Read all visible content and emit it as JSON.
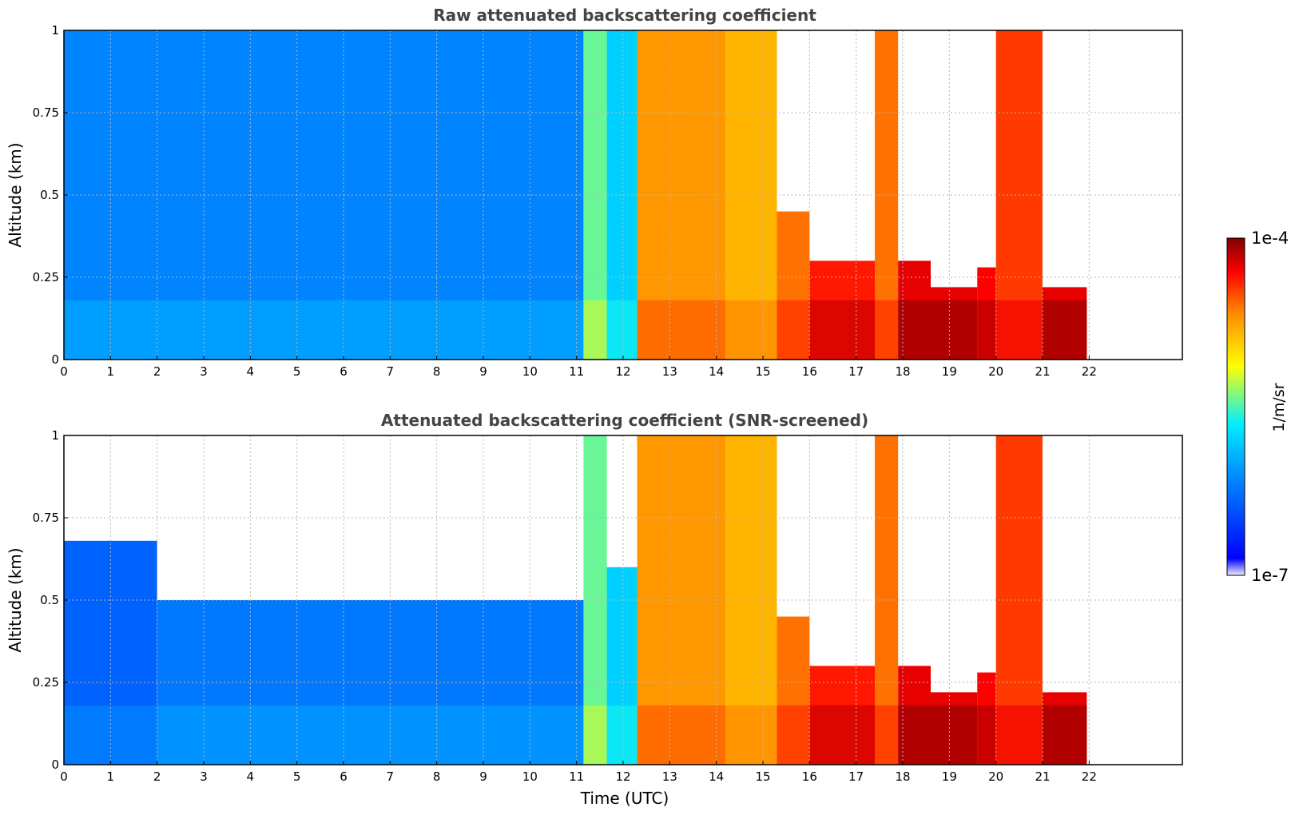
{
  "chart_data": [
    {
      "type": "heatmap",
      "title": "Raw attenuated backscattering coefficient",
      "xlabel": "",
      "ylabel": "Altitude (km)",
      "xlim": [
        0,
        24
      ],
      "ylim": [
        0,
        1
      ],
      "xticks": [
        "0",
        "1",
        "2",
        "3",
        "4",
        "5",
        "6",
        "7",
        "8",
        "9",
        "10",
        "11",
        "12",
        "13",
        "14",
        "15",
        "16",
        "17",
        "18",
        "19",
        "20",
        "21",
        "22"
      ],
      "yticks": [
        "0",
        "0.25",
        "0.5",
        "0.75",
        "1"
      ],
      "ytick_values": [
        0,
        0.25,
        0.5,
        0.75,
        1
      ],
      "grid": true,
      "bands": [
        {
          "x0": 0,
          "x1": 11.15,
          "y_top": 1.0,
          "level": 0.28
        },
        {
          "x0": 11.15,
          "x1": 11.65,
          "y_top": 1.0,
          "level": 0.52
        },
        {
          "x0": 11.65,
          "x1": 12.3,
          "y_top": 1.0,
          "level": 0.4
        },
        {
          "x0": 12.3,
          "x1": 14.2,
          "y_top": 1.0,
          "level": 0.76
        },
        {
          "x0": 14.2,
          "x1": 15.3,
          "y_top": 1.0,
          "level": 0.72
        },
        {
          "x0": 15.3,
          "x1": 16.0,
          "y_top": 0.45,
          "level": 0.8
        },
        {
          "x0": 16.0,
          "x1": 17.4,
          "y_top": 0.3,
          "level": 0.88
        },
        {
          "x0": 17.4,
          "x1": 17.9,
          "y_top": 1.0,
          "level": 0.8
        },
        {
          "x0": 17.9,
          "x1": 18.6,
          "y_top": 0.3,
          "level": 0.92
        },
        {
          "x0": 18.6,
          "x1": 19.6,
          "y_top": 0.22,
          "level": 0.92
        },
        {
          "x0": 19.6,
          "x1": 20.0,
          "y_top": 0.28,
          "level": 0.9
        },
        {
          "x0": 20.0,
          "x1": 21.0,
          "y_top": 1.0,
          "level": 0.85
        },
        {
          "x0": 21.0,
          "x1": 21.95,
          "y_top": 0.22,
          "level": 0.92
        }
      ]
    },
    {
      "type": "heatmap",
      "title": "Attenuated backscattering coefficient (SNR-screened)",
      "xlabel": "Time (UTC)",
      "ylabel": "Altitude (km)",
      "xlim": [
        0,
        24
      ],
      "ylim": [
        0,
        1
      ],
      "xticks": [
        "0",
        "1",
        "2",
        "3",
        "4",
        "5",
        "6",
        "7",
        "8",
        "9",
        "10",
        "11",
        "12",
        "13",
        "14",
        "15",
        "16",
        "17",
        "18",
        "19",
        "20",
        "21",
        "22"
      ],
      "yticks": [
        "0",
        "0.25",
        "0.5",
        "0.75",
        "1"
      ],
      "ytick_values": [
        0,
        0.25,
        0.5,
        0.75,
        1
      ],
      "grid": true,
      "bands": [
        {
          "x0": 0,
          "x1": 2.0,
          "y_top": 0.68,
          "level": 0.22
        },
        {
          "x0": 2.0,
          "x1": 11.15,
          "y_top": 0.5,
          "level": 0.26
        },
        {
          "x0": 11.15,
          "x1": 11.65,
          "y_top": 1.0,
          "level": 0.52
        },
        {
          "x0": 11.65,
          "x1": 12.3,
          "y_top": 0.6,
          "level": 0.4
        },
        {
          "x0": 12.3,
          "x1": 14.2,
          "y_top": 1.0,
          "level": 0.76
        },
        {
          "x0": 14.2,
          "x1": 15.3,
          "y_top": 1.0,
          "level": 0.72
        },
        {
          "x0": 15.3,
          "x1": 16.0,
          "y_top": 0.45,
          "level": 0.8
        },
        {
          "x0": 16.0,
          "x1": 17.4,
          "y_top": 0.3,
          "level": 0.88
        },
        {
          "x0": 17.4,
          "x1": 17.9,
          "y_top": 1.0,
          "level": 0.8
        },
        {
          "x0": 17.9,
          "x1": 18.6,
          "y_top": 0.3,
          "level": 0.92
        },
        {
          "x0": 18.6,
          "x1": 19.6,
          "y_top": 0.22,
          "level": 0.92
        },
        {
          "x0": 19.6,
          "x1": 20.0,
          "y_top": 0.28,
          "level": 0.9
        },
        {
          "x0": 20.0,
          "x1": 21.0,
          "y_top": 1.0,
          "level": 0.85
        },
        {
          "x0": 21.0,
          "x1": 21.95,
          "y_top": 0.22,
          "level": 0.92
        }
      ]
    }
  ],
  "colorbar": {
    "max_label": "1e-4",
    "min_label": "1e-7",
    "unit": "1/m/sr",
    "colors": [
      "#ffffff",
      "#0000ff",
      "#00aaff",
      "#00ffff",
      "#ffff00",
      "#ff8800",
      "#ff0000",
      "#880000"
    ]
  }
}
